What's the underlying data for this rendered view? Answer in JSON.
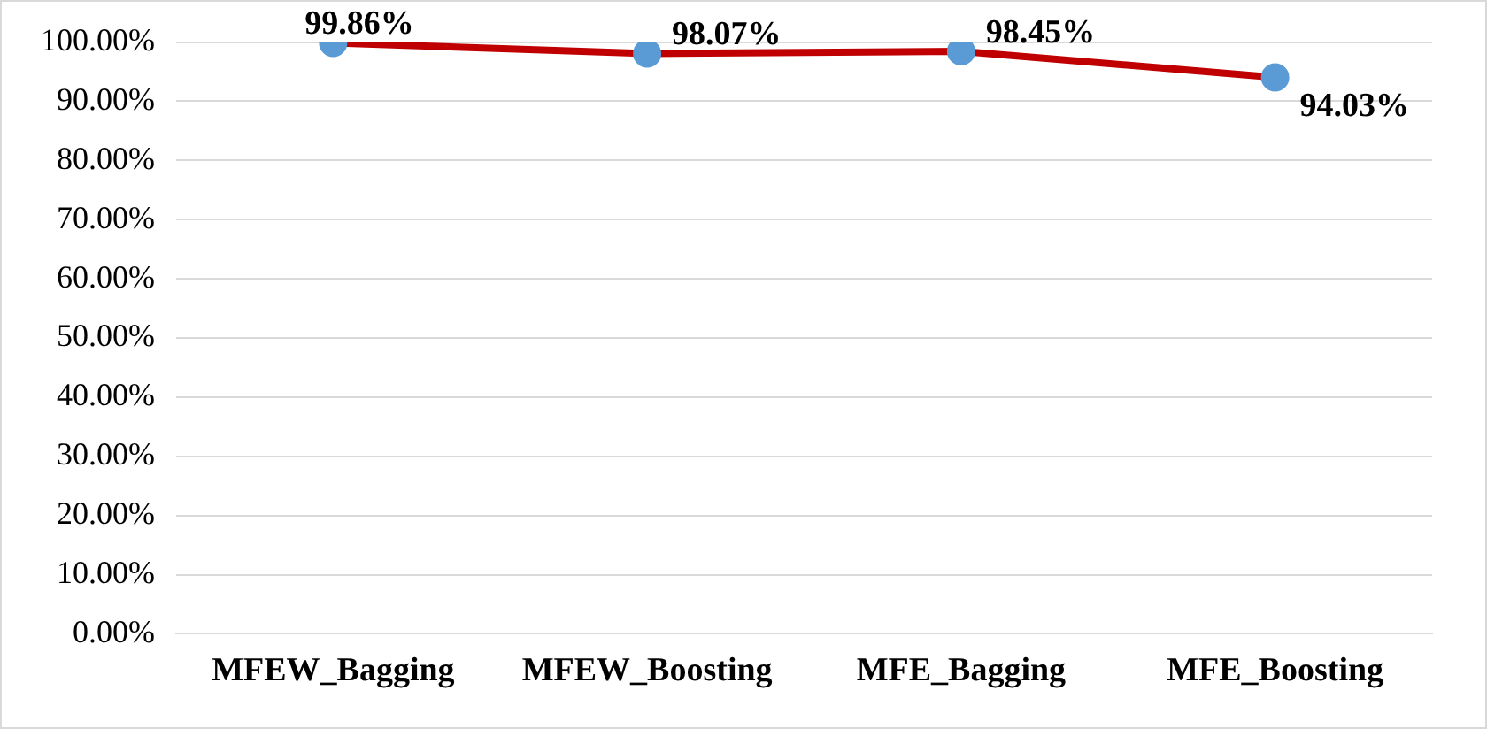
{
  "chart_data": {
    "type": "line",
    "categories": [
      "MFEW_Bagging",
      "MFEW_Boosting",
      "MFE_Bagging",
      "MFE_Boosting"
    ],
    "series": [
      {
        "color": "#c00000",
        "colors": [
          "#5b9bd5",
          "#5b9bd5",
          "#5b9bd5",
          "#5b9bd5"
        ],
        "values": [
          99.86,
          98.07,
          98.45,
          94.03
        ],
        "value_labels": [
          "99.86%",
          "98.07%",
          "98.45%",
          "94.03%"
        ]
      }
    ],
    "ylim": [
      0,
      100
    ],
    "yticks": [
      {
        "value": 0,
        "label": "0.00%"
      },
      {
        "value": 10,
        "label": "10.00%"
      },
      {
        "value": 20,
        "label": "20.00%"
      },
      {
        "value": 30,
        "label": "30.00%"
      },
      {
        "value": 40,
        "label": "40.00%"
      },
      {
        "value": 50,
        "label": "50.00%"
      },
      {
        "value": 60,
        "label": "60.00%"
      },
      {
        "value": 70,
        "label": "70.00%"
      },
      {
        "value": 80,
        "label": "80.00%"
      },
      {
        "value": 90,
        "label": "90.00%"
      },
      {
        "value": 100,
        "label": "100.00%"
      }
    ],
    "grid": "y",
    "legend": false,
    "marker": "circle",
    "line_style": "solid"
  }
}
